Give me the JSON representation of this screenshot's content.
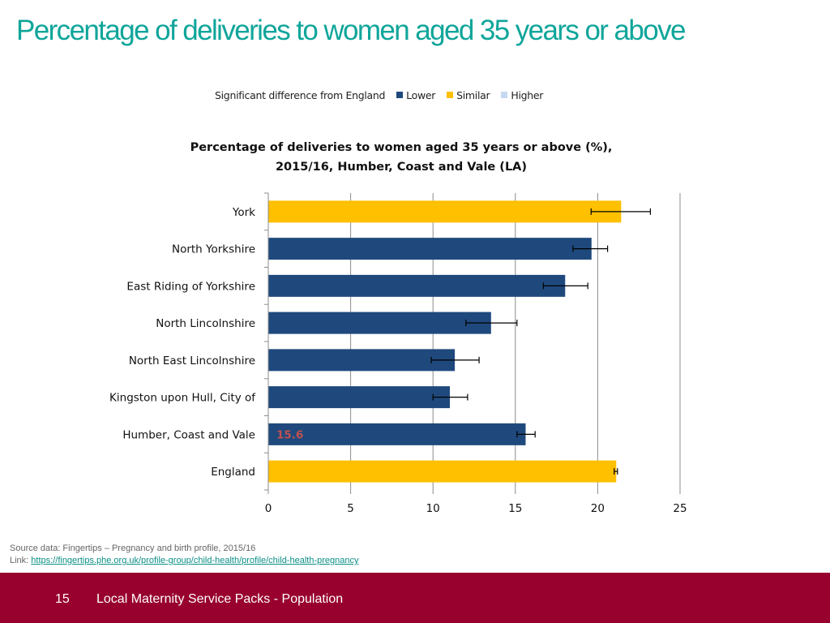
{
  "slide": {
    "title": "Percentage of deliveries to women aged 35 years or above",
    "page_number": "15",
    "footer_text": "Local Maternity Service Packs - Population"
  },
  "legend": {
    "title": "Significant difference from England",
    "items": [
      {
        "label": "Lower",
        "color": "#1f497d"
      },
      {
        "label": "Similar",
        "color": "#ffc000"
      },
      {
        "label": "Higher",
        "color": "#c6d9f1"
      }
    ]
  },
  "source": {
    "line1": "Source data: Fingertips – Pregnancy and birth profile, 2015/16",
    "link_prefix": "Link: ",
    "link_text": "https://fingertips.phe.org.uk/profile-group/child-health/profile/child-health-pregnancy"
  },
  "chart_data": {
    "type": "bar",
    "orientation": "horizontal",
    "title_lines": [
      "Percentage of deliveries to women aged 35 years or above (%),",
      "2015/16, Humber, Coast and Vale (LA)"
    ],
    "categories": [
      "York",
      "North Yorkshire",
      "East Riding of Yorkshire",
      "North Lincolnshire",
      "North East Lincolnshire",
      "Kingston upon Hull, City of",
      "Humber, Coast and Vale",
      "England"
    ],
    "values": [
      21.4,
      19.6,
      18.0,
      13.5,
      11.3,
      11.0,
      15.6,
      21.1
    ],
    "ci_lower": [
      19.6,
      18.5,
      16.7,
      12.0,
      9.9,
      10.0,
      15.1,
      21.0
    ],
    "ci_upper": [
      23.2,
      20.6,
      19.4,
      15.1,
      12.8,
      12.1,
      16.2,
      21.2
    ],
    "significance": [
      "Similar",
      "Lower",
      "Lower",
      "Lower",
      "Lower",
      "Lower",
      "Lower",
      "Similar"
    ],
    "data_labels": [
      null,
      null,
      null,
      null,
      null,
      null,
      "15.6",
      null
    ],
    "xlim": [
      0,
      25
    ],
    "xticks": [
      0,
      5,
      10,
      15,
      20,
      25
    ],
    "grid": "vertical",
    "legend_position": "top",
    "data_label_color": "#c0504d"
  }
}
